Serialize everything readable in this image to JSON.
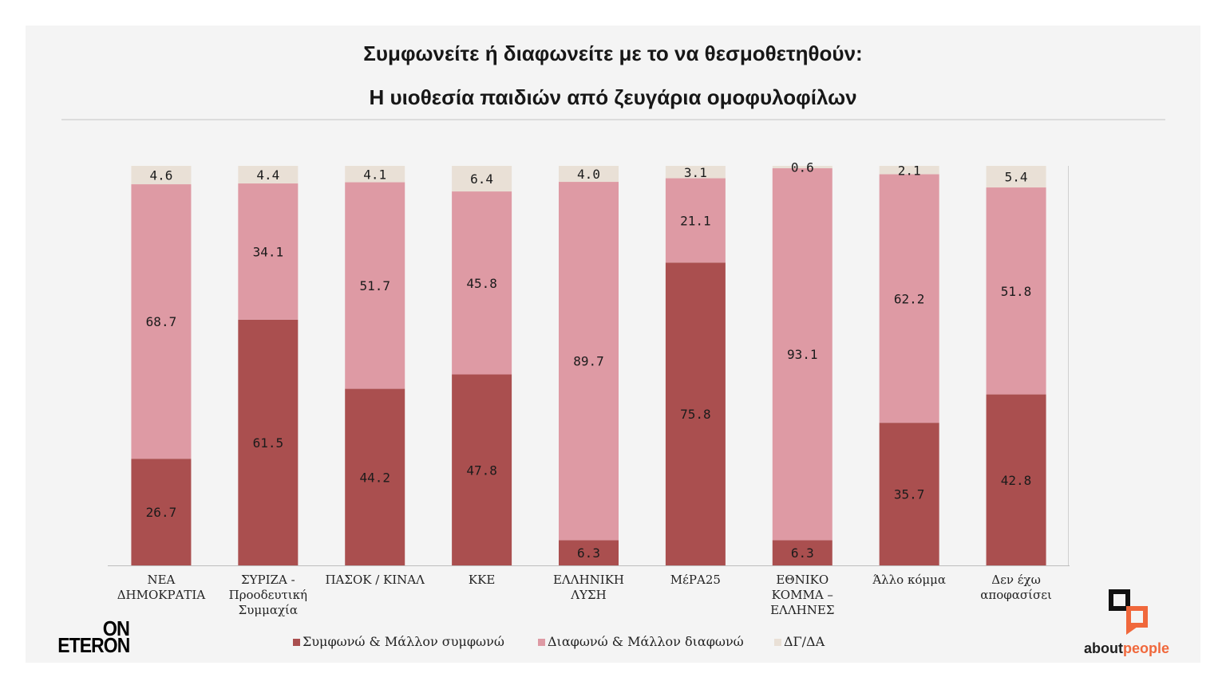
{
  "chart_data": {
    "type": "bar",
    "stacked": true,
    "title": "Συμφωνείτε ή διαφωνείτε με το να θεσμοθετηθούν:",
    "subtitle": "Η υιοθεσία παιδιών από ζευγάρια ομοφυλοφίλων",
    "categories": [
      "ΝΕΑ\nΔΗΜΟΚΡΑΤΙΑ",
      "ΣΥΡΙΖΑ -\nΠροοδευτική\nΣυμμαχία",
      "ΠΑΣΟΚ / ΚΙΝΑΛ",
      "ΚΚΕ",
      "ΕΛΛΗΝΙΚΗ\nΛΥΣΗ",
      "ΜέΡΑ25",
      "ΕΘΝΙΚΟ\nΚΟΜΜΑ –\nΕΛΛΗΝΕΣ",
      "Άλλο κόμμα",
      "Δεν έχω\nαποφασίσει"
    ],
    "series": [
      {
        "name": "Συμφωνώ & Μάλλον συμφωνώ",
        "color": "#AA4F4F",
        "values": [
          26.7,
          61.5,
          44.2,
          47.8,
          6.3,
          75.8,
          6.3,
          35.7,
          42.8
        ]
      },
      {
        "name": "Διαφωνώ & Μάλλον διαφωνώ",
        "color": "#DE9AA4",
        "values": [
          68.7,
          34.1,
          51.7,
          45.8,
          89.7,
          21.1,
          93.1,
          62.2,
          51.8
        ]
      },
      {
        "name": "ΔΓ/ΔΑ",
        "color": "#E9E0D6",
        "values": [
          4.6,
          4.4,
          4.1,
          6.4,
          4.0,
          3.1,
          0.6,
          2.1,
          5.4
        ]
      }
    ],
    "ylim": [
      0,
      100
    ],
    "data_labels": true,
    "grid": false,
    "legend": "bottom"
  },
  "logos": {
    "eteron": {
      "line1": "ON",
      "line2": "ETERON"
    },
    "aboutpeople": {
      "part1": "about",
      "part2": "people",
      "accent_color": "#F0683C"
    }
  },
  "colors": {
    "page_background": "#FFFFFF",
    "panel_background": "#F4F4F4"
  }
}
